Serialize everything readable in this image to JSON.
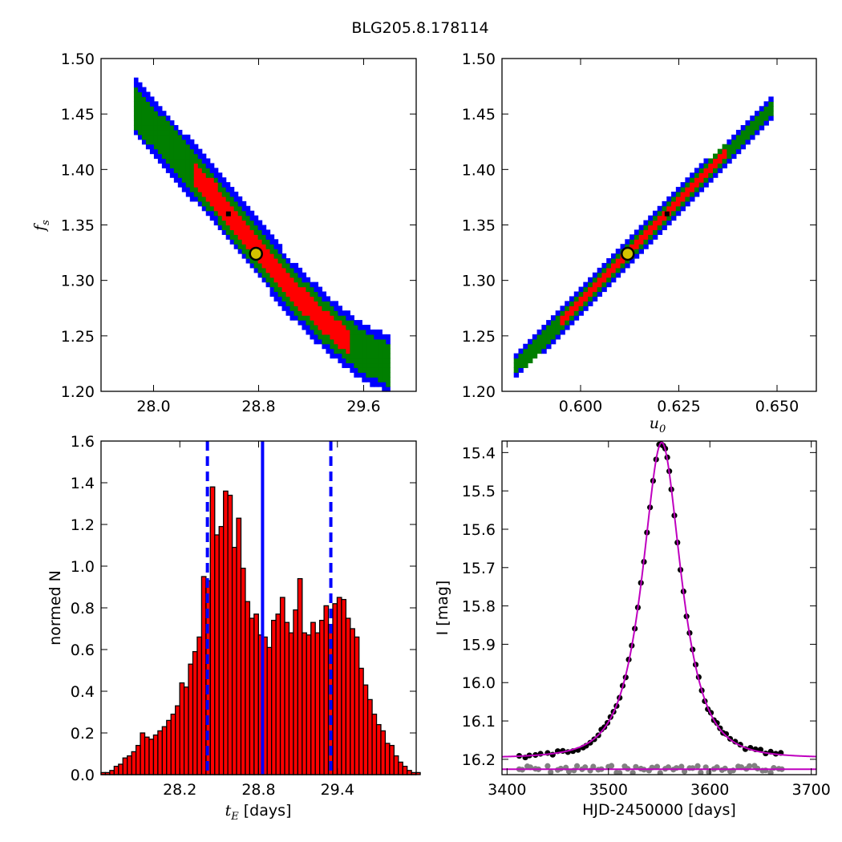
{
  "title": "BLG205.8.178114",
  "colors": {
    "inner": "#ff0000",
    "mid": "#007f00",
    "outer": "#0000ff",
    "marker_face": "#d4c200",
    "model": "#bf00bf",
    "data": "#000000",
    "residual": "#808080"
  },
  "chart_data": [
    {
      "id": "tE-fs",
      "type": "heatmap",
      "xlabel": "",
      "ylabel_var": "f",
      "ylabel_sub": "s",
      "xlim": [
        27.6,
        30.0
      ],
      "ylim": [
        1.2,
        1.5
      ],
      "xticks": [
        "28.0",
        "28.8",
        "29.6"
      ],
      "xtick_values": [
        28.0,
        28.8,
        29.6
      ],
      "yticks": [
        "1.20",
        "1.25",
        "1.30",
        "1.35",
        "1.40",
        "1.45",
        "1.50"
      ],
      "ytick_values": [
        1.2,
        1.25,
        1.3,
        1.35,
        1.4,
        1.45,
        1.5
      ],
      "ridge": [
        [
          27.85,
          1.458
        ],
        [
          28.15,
          1.418
        ],
        [
          28.45,
          1.379
        ],
        [
          28.75,
          1.336
        ],
        [
          29.05,
          1.292
        ],
        [
          29.35,
          1.258
        ],
        [
          29.6,
          1.235
        ],
        [
          29.8,
          1.224
        ]
      ],
      "confidence_halfwidths": {
        "inner": 0.011,
        "mid": 0.019,
        "outer": 0.026
      },
      "inner_range": [
        28.3,
        29.5
      ],
      "best_fit": [
        28.78,
        1.324
      ],
      "black_point": [
        28.57,
        1.36
      ]
    },
    {
      "id": "u0-fs",
      "type": "heatmap",
      "xlabel_var": "u",
      "xlabel_sub": "0",
      "ylabel": "",
      "xlim": [
        0.58,
        0.66
      ],
      "ylim": [
        1.2,
        1.5
      ],
      "xticks": [
        "0.600",
        "0.625",
        "0.650"
      ],
      "xtick_values": [
        0.6,
        0.625,
        0.65
      ],
      "yticks": [
        "1.20",
        "1.25",
        "1.30",
        "1.35",
        "1.40",
        "1.45",
        "1.50"
      ],
      "ytick_values": [
        1.2,
        1.25,
        1.3,
        1.35,
        1.4,
        1.45,
        1.5
      ],
      "ridge": [
        [
          0.583,
          1.221
        ],
        [
          0.649,
          1.457
        ]
      ],
      "confidence_halfwidths": {
        "inner": 0.004,
        "mid": 0.008,
        "outer": 0.012
      },
      "inner_range": [
        0.595,
        0.637
      ],
      "best_fit": [
        0.612,
        1.324
      ],
      "black_point": [
        0.622,
        1.36
      ]
    },
    {
      "id": "tE-hist",
      "type": "bar",
      "xlabel_var": "t",
      "xlabel_sub": "E",
      "xlabel_units": "[days]",
      "ylabel": "normed N",
      "xlim": [
        27.6,
        30.0
      ],
      "ylim": [
        0.0,
        1.6
      ],
      "xticks": [
        "28.2",
        "28.8",
        "29.4"
      ],
      "xtick_values": [
        28.2,
        28.8,
        29.4
      ],
      "yticks": [
        "0.0",
        "0.2",
        "0.4",
        "0.6",
        "0.8",
        "1.0",
        "1.2",
        "1.4",
        "1.6"
      ],
      "ytick_values": [
        0.0,
        0.2,
        0.4,
        0.6,
        0.8,
        1.0,
        1.2,
        1.4,
        1.6
      ],
      "bin_start": 27.6,
      "bin_width": 0.0333,
      "values": [
        0.01,
        0.01,
        0.02,
        0.04,
        0.05,
        0.08,
        0.09,
        0.11,
        0.14,
        0.2,
        0.18,
        0.17,
        0.19,
        0.21,
        0.23,
        0.26,
        0.29,
        0.33,
        0.44,
        0.42,
        0.53,
        0.59,
        0.66,
        0.95,
        0.93,
        1.38,
        1.15,
        1.19,
        1.36,
        1.34,
        1.09,
        1.23,
        0.99,
        0.83,
        0.75,
        0.77,
        0.67,
        0.66,
        0.61,
        0.74,
        0.77,
        0.85,
        0.73,
        0.68,
        0.79,
        0.94,
        0.68,
        0.67,
        0.73,
        0.68,
        0.74,
        0.81,
        0.72,
        0.82,
        0.85,
        0.84,
        0.75,
        0.7,
        0.66,
        0.51,
        0.43,
        0.36,
        0.29,
        0.24,
        0.21,
        0.15,
        0.14,
        0.09,
        0.06,
        0.04,
        0.02,
        0.01,
        0.01
      ],
      "median": 28.83,
      "lower": 28.41,
      "upper": 29.35
    },
    {
      "id": "lightcurve",
      "type": "scatter",
      "xlabel": "HJD-2450000 [days]",
      "ylabel": "I [mag]",
      "xlim": [
        3395,
        3705
      ],
      "ylim": [
        16.24,
        15.37
      ],
      "xticks": [
        "3400",
        "3500",
        "3600",
        "3700"
      ],
      "xtick_values": [
        3400,
        3500,
        3600,
        3700
      ],
      "yticks": [
        "15.4",
        "15.5",
        "15.6",
        "15.7",
        "15.8",
        "15.9",
        "16.0",
        "16.1",
        "16.2"
      ],
      "ytick_values": [
        15.4,
        15.5,
        15.6,
        15.7,
        15.8,
        15.9,
        16.0,
        16.1,
        16.2
      ],
      "model": {
        "t0": 3552.5,
        "tE": 28.8,
        "u0": 0.612,
        "fs": 1.324,
        "Ibase": 16.196
      },
      "baseline_mag": 16.226,
      "data_x": [
        3412,
        3418,
        3422,
        3428,
        3433,
        3440,
        3445,
        3450,
        3455,
        3460,
        3465,
        3470,
        3475,
        3478,
        3482,
        3486,
        3490,
        3493,
        3496,
        3499,
        3502,
        3505,
        3508,
        3511,
        3514,
        3517,
        3520,
        3523,
        3526,
        3529,
        3532,
        3535,
        3538,
        3541,
        3544,
        3547,
        3550,
        3552,
        3554,
        3556,
        3558,
        3560,
        3562,
        3565,
        3568,
        3571,
        3574,
        3577,
        3580,
        3583,
        3586,
        3589,
        3592,
        3595,
        3598,
        3601,
        3604,
        3607,
        3610,
        3613,
        3616,
        3620,
        3625,
        3630,
        3635,
        3640,
        3645,
        3650,
        3655,
        3660,
        3665,
        3670
      ],
      "resid_x": [
        3412,
        3420,
        3428,
        3440,
        3450,
        3458,
        3466,
        3474,
        3482,
        3490,
        3500,
        3508,
        3516,
        3524,
        3532,
        3540,
        3548,
        3556,
        3564,
        3572,
        3580,
        3588,
        3596,
        3604,
        3612,
        3620,
        3628,
        3636,
        3644,
        3652,
        3660,
        3668
      ]
    }
  ]
}
